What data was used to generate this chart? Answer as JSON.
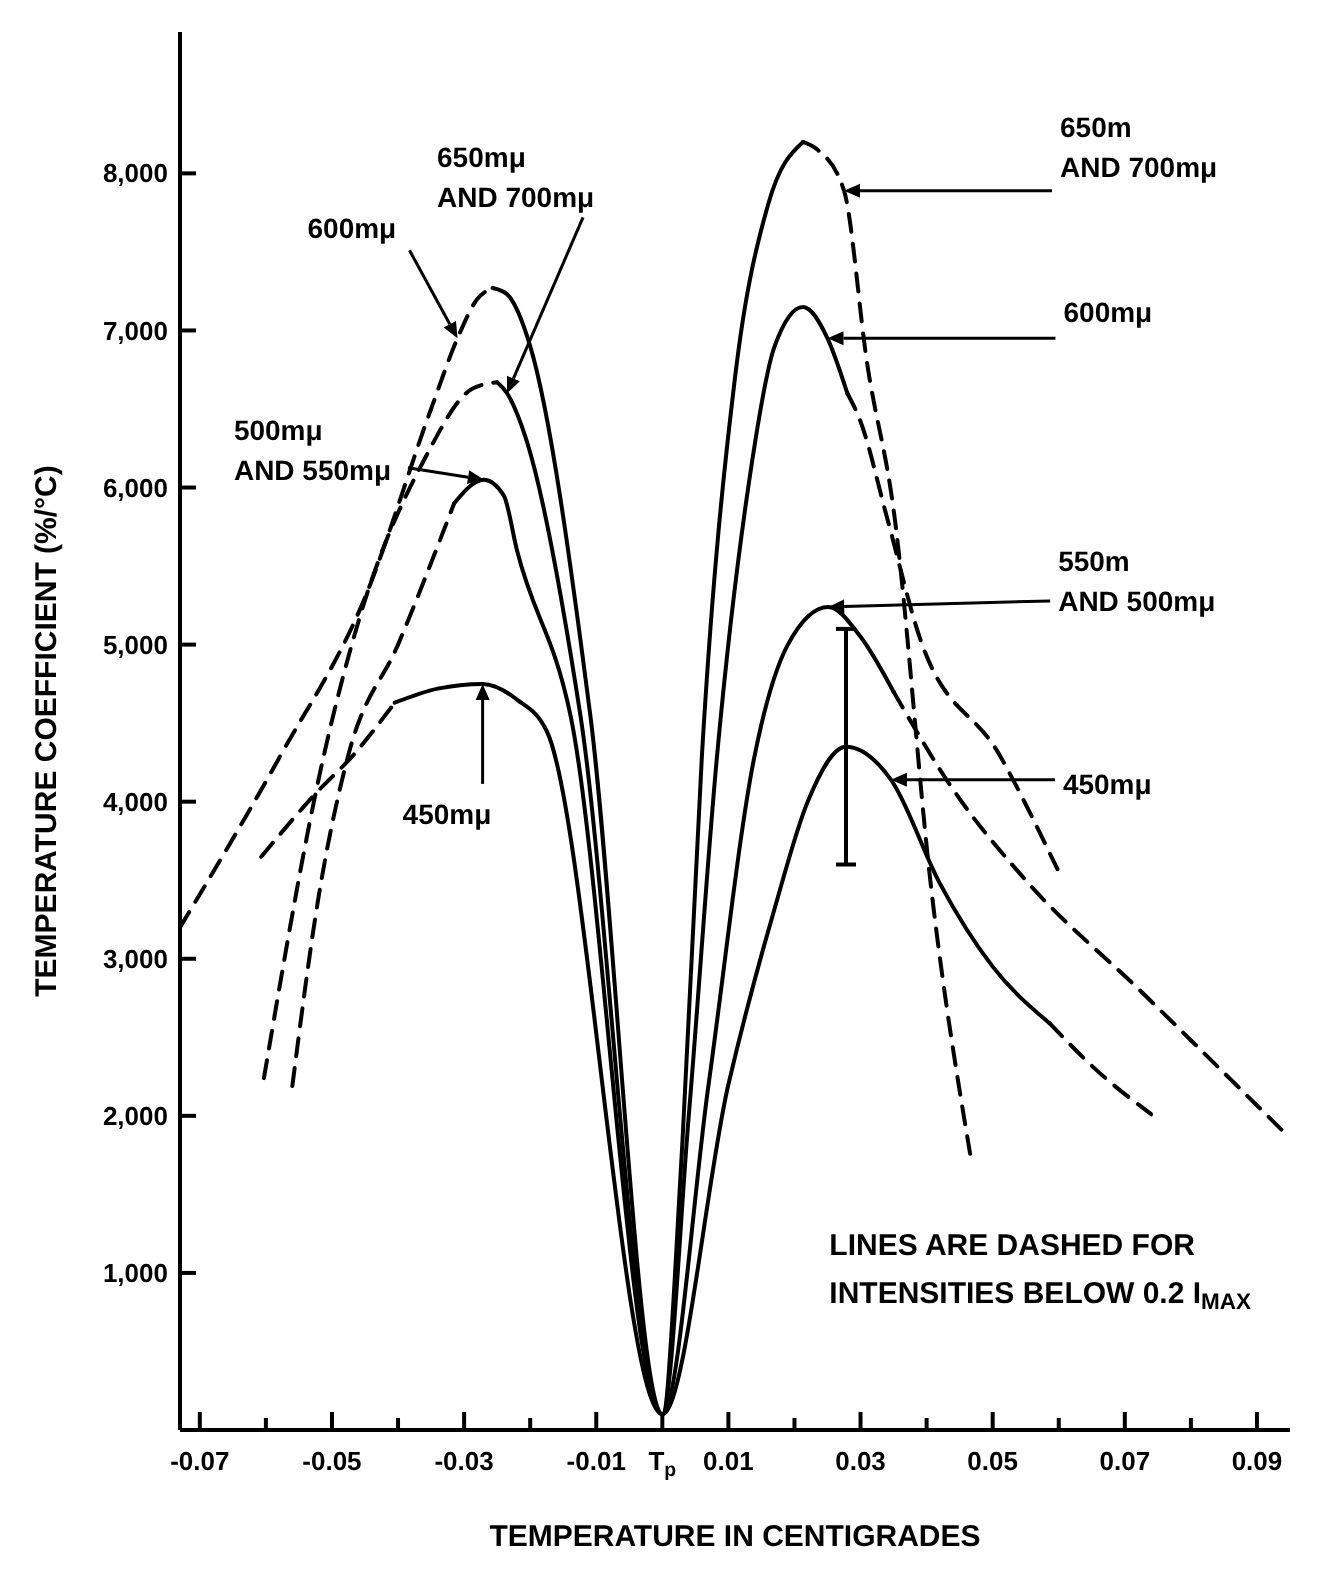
{
  "chart_data": {
    "type": "line",
    "xlabel": "TEMPERATURE IN CENTIGRADES",
    "ylabel": "TEMPERATURE COEFFICIENT (%/°C)",
    "xlim": [
      -0.073,
      0.095
    ],
    "ylim": [
      0,
      8900
    ],
    "xticks": [
      {
        "value": -0.07,
        "label": "-0.07"
      },
      {
        "value": -0.06,
        "label": null
      },
      {
        "value": -0.05,
        "label": "-0.05"
      },
      {
        "value": -0.04,
        "label": null
      },
      {
        "value": -0.03,
        "label": "-0.03"
      },
      {
        "value": -0.02,
        "label": null
      },
      {
        "value": -0.01,
        "label": "-0.01"
      },
      {
        "value": 0,
        "label": "T$_{p}$"
      },
      {
        "value": 0.01,
        "label": "0.01"
      },
      {
        "value": 0.02,
        "label": null
      },
      {
        "value": 0.03,
        "label": "0.03"
      },
      {
        "value": 0.04,
        "label": null
      },
      {
        "value": 0.05,
        "label": "0.05"
      },
      {
        "value": 0.06,
        "label": null
      },
      {
        "value": 0.07,
        "label": "0.07"
      },
      {
        "value": 0.08,
        "label": null
      },
      {
        "value": 0.09,
        "label": "0.09"
      }
    ],
    "yticks": [
      {
        "value": 1000,
        "label": "1,000"
      },
      {
        "value": 2000,
        "label": "2,000"
      },
      {
        "value": 3000,
        "label": "3,000"
      },
      {
        "value": 4000,
        "label": "4,000"
      },
      {
        "value": 5000,
        "label": "5,000"
      },
      {
        "value": 6000,
        "label": "6,000"
      },
      {
        "value": 7000,
        "label": "7,000"
      },
      {
        "value": 8000,
        "label": "8,000"
      }
    ],
    "grid": false,
    "series": [
      {
        "color": "#000000",
        "line_style": "dashed",
        "x": [
          -0.0607,
          -0.0525,
          -0.0467,
          -0.0405
        ],
        "values": [
          3650,
          4050,
          4300,
          4630
        ]
      },
      {
        "color": "#000000",
        "line_style": "solid",
        "x": [
          -0.0405,
          -0.034,
          -0.0272,
          -0.022,
          -0.0175,
          0,
          0.01,
          0.017,
          0.022,
          0.0278,
          0.0346,
          0.042,
          0.05,
          0.0586
        ],
        "values": [
          4630,
          4720,
          4750,
          4650,
          4450,
          100,
          2200,
          3320,
          4000,
          4350,
          4140,
          3480,
          2950,
          2590
        ],
        "errors": [
          null,
          null,
          null,
          null,
          null,
          null,
          null,
          null,
          null,
          750,
          null,
          null,
          null,
          null
        ]
      },
      {
        "color": "#000000",
        "line_style": "dashed",
        "x": [
          0.0586,
          0.066,
          0.074
        ],
        "values": [
          2590,
          2280,
          2010
        ]
      },
      {
        "color": "#000000",
        "line_style": "dashed",
        "x": [
          -0.056,
          -0.052,
          -0.0475,
          -0.04,
          -0.0315
        ],
        "values": [
          2190,
          3400,
          4300,
          5000,
          5900
        ]
      },
      {
        "color": "#000000",
        "line_style": "solid",
        "x": [
          -0.0315,
          -0.027,
          -0.024,
          -0.022,
          -0.0139,
          0,
          0.007,
          0.014,
          0.019,
          0.0251,
          0.03,
          0.035
        ],
        "values": [
          5900,
          6050,
          5950,
          5600,
          4550,
          100,
          2200,
          4300,
          5000,
          5240,
          5050,
          4700
        ]
      },
      {
        "color": "#000000",
        "line_style": "dashed",
        "x": [
          0.035,
          0.0438,
          0.055,
          0.0725,
          0.094
        ],
        "values": [
          4700,
          4090,
          3500,
          2790,
          1900
        ]
      },
      {
        "color": "#000000",
        "line_style": "dashed",
        "x": [
          -0.073,
          -0.0577,
          -0.045,
          -0.035,
          -0.031,
          -0.028,
          -0.0257
        ],
        "values": [
          3200,
          4300,
          5300,
          6500,
          6950,
          7200,
          7270
        ]
      },
      {
        "color": "#000000",
        "line_style": "solid",
        "x": [
          -0.0257,
          -0.0235,
          -0.02,
          -0.0109,
          0,
          0.004,
          0.0083,
          0.013,
          0.017,
          0.0213,
          0.025,
          0.028
        ],
        "values": [
          7270,
          7230,
          6900,
          4550,
          100,
          2000,
          4300,
          6000,
          6900,
          7150,
          6950,
          6600
        ]
      },
      {
        "color": "#000000",
        "line_style": "dashed",
        "x": [
          0.028,
          0.03,
          0.034,
          0.039,
          0.051,
          0.0598
        ],
        "values": [
          6600,
          6420,
          5810,
          5040,
          4300,
          3570
        ]
      },
      {
        "color": "#000000",
        "line_style": "dashed",
        "x": [
          -0.0603,
          -0.0512,
          -0.0459,
          -0.036,
          -0.0287,
          -0.025
        ],
        "values": [
          2240,
          4300,
          5160,
          6180,
          6630,
          6670
        ]
      },
      {
        "color": "#000000",
        "line_style": "solid",
        "x": [
          -0.025,
          -0.0235,
          -0.0207,
          -0.0124,
          0,
          0.003,
          0.006,
          0.011,
          0.016,
          0.0213
        ],
        "values": [
          6670,
          6600,
          6320,
          4550,
          100,
          1800,
          4300,
          6700,
          7800,
          8200
        ]
      },
      {
        "color": "#000000",
        "line_style": "dashed",
        "x": [
          0.0213,
          0.0235,
          0.0275,
          0.031,
          0.035,
          0.0408,
          0.0467
        ],
        "values": [
          8200,
          8150,
          7890,
          6790,
          5860,
          3410,
          1730
        ]
      }
    ],
    "annotations": [
      {
        "text": "600mμ",
        "x": -0.031,
        "y": 6950
      },
      {
        "text": "650mμ\nAND 700mμ",
        "x": -0.0235,
        "y": 6600
      },
      {
        "text": "500mμ\nAND 550mμ",
        "x": -0.027,
        "y": 6050
      },
      {
        "text": "450mμ",
        "x": -0.0272,
        "y": 4750
      },
      {
        "text": "650m\nAND 700mμ",
        "x": 0.0275,
        "y": 7890
      },
      {
        "text": "600mμ",
        "x": 0.025,
        "y": 6950
      },
      {
        "text": "550m\nAND 500mμ",
        "x": 0.0251,
        "y": 5240
      },
      {
        "text": "450mμ",
        "x": 0.0346,
        "y": 4140
      },
      "LINES ARE DASHED FOR\nINTENSITIES  BELOW 0.2 I$_{MAX}$"
    ]
  }
}
